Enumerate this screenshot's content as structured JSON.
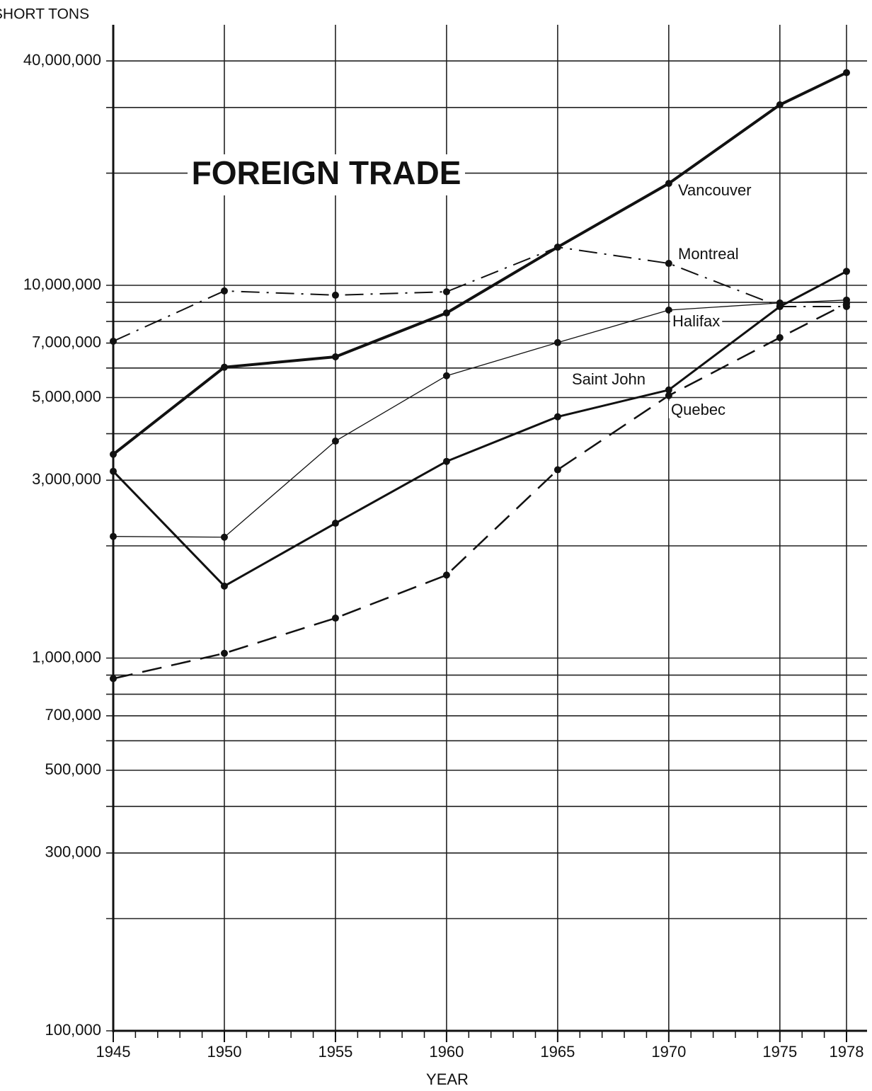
{
  "chart_data": {
    "type": "line",
    "title": "FOREIGN TRADE",
    "ylabel": "SHORT TONS",
    "xlabel": "YEAR",
    "x": [
      1945,
      1950,
      1955,
      1960,
      1965,
      1970,
      1975,
      1978
    ],
    "xlim": [
      1945,
      1978
    ],
    "xticks": [
      1945,
      1950,
      1955,
      1960,
      1965,
      1970,
      1975,
      1978
    ],
    "ylim": [
      100000,
      50000000
    ],
    "yscale": "log",
    "grid": true,
    "yticks": [
      {
        "value": 100000,
        "label": "100,000"
      },
      {
        "value": 300000,
        "label": "300,000"
      },
      {
        "value": 500000,
        "label": "500,000"
      },
      {
        "value": 700000,
        "label": "700,000"
      },
      {
        "value": 1000000,
        "label": "1,000,000"
      },
      {
        "value": 3000000,
        "label": "3,000,000"
      },
      {
        "value": 5000000,
        "label": "5,000,000"
      },
      {
        "value": 7000000,
        "label": "7,000,000"
      },
      {
        "value": 10000000,
        "label": "10,000,000"
      },
      {
        "value": 40000000,
        "label": "40,000,000"
      }
    ],
    "minor_yticks": [
      200000,
      400000,
      600000,
      800000,
      900000,
      2000000,
      4000000,
      6000000,
      8000000,
      9000000,
      20000000,
      30000000
    ],
    "series": [
      {
        "name": "Vancouver",
        "color": "#111111",
        "line_style": "solid",
        "line_width": 4,
        "values": [
          3520000,
          6030000,
          6430000,
          8430000,
          12660000,
          18760000,
          30500000,
          37200000
        ]
      },
      {
        "name": "Montreal",
        "color": "#111111",
        "line_style": "dashdot",
        "line_width": 2,
        "values": [
          7080000,
          9660000,
          9410000,
          9610000,
          12660000,
          11450000,
          8770000,
          8770000
        ]
      },
      {
        "name": "Halifax",
        "color": "#111111",
        "line_style": "solid",
        "line_width": 1.3,
        "values": [
          2120000,
          2110000,
          3820000,
          5720000,
          7020000,
          8580000,
          8970000,
          9130000
        ]
      },
      {
        "name": "Saint John",
        "color": "#111111",
        "line_style": "solid",
        "line_width": 3,
        "values": [
          3170000,
          1560000,
          2300000,
          3370000,
          4440000,
          5240000,
          8770000,
          10900000
        ]
      },
      {
        "name": "Quebec",
        "color": "#111111",
        "line_style": "dashed",
        "line_width": 2.5,
        "values": [
          881000,
          1030000,
          1280000,
          1670000,
          3200000,
          5060000,
          7240000,
          8930000
        ]
      }
    ]
  }
}
